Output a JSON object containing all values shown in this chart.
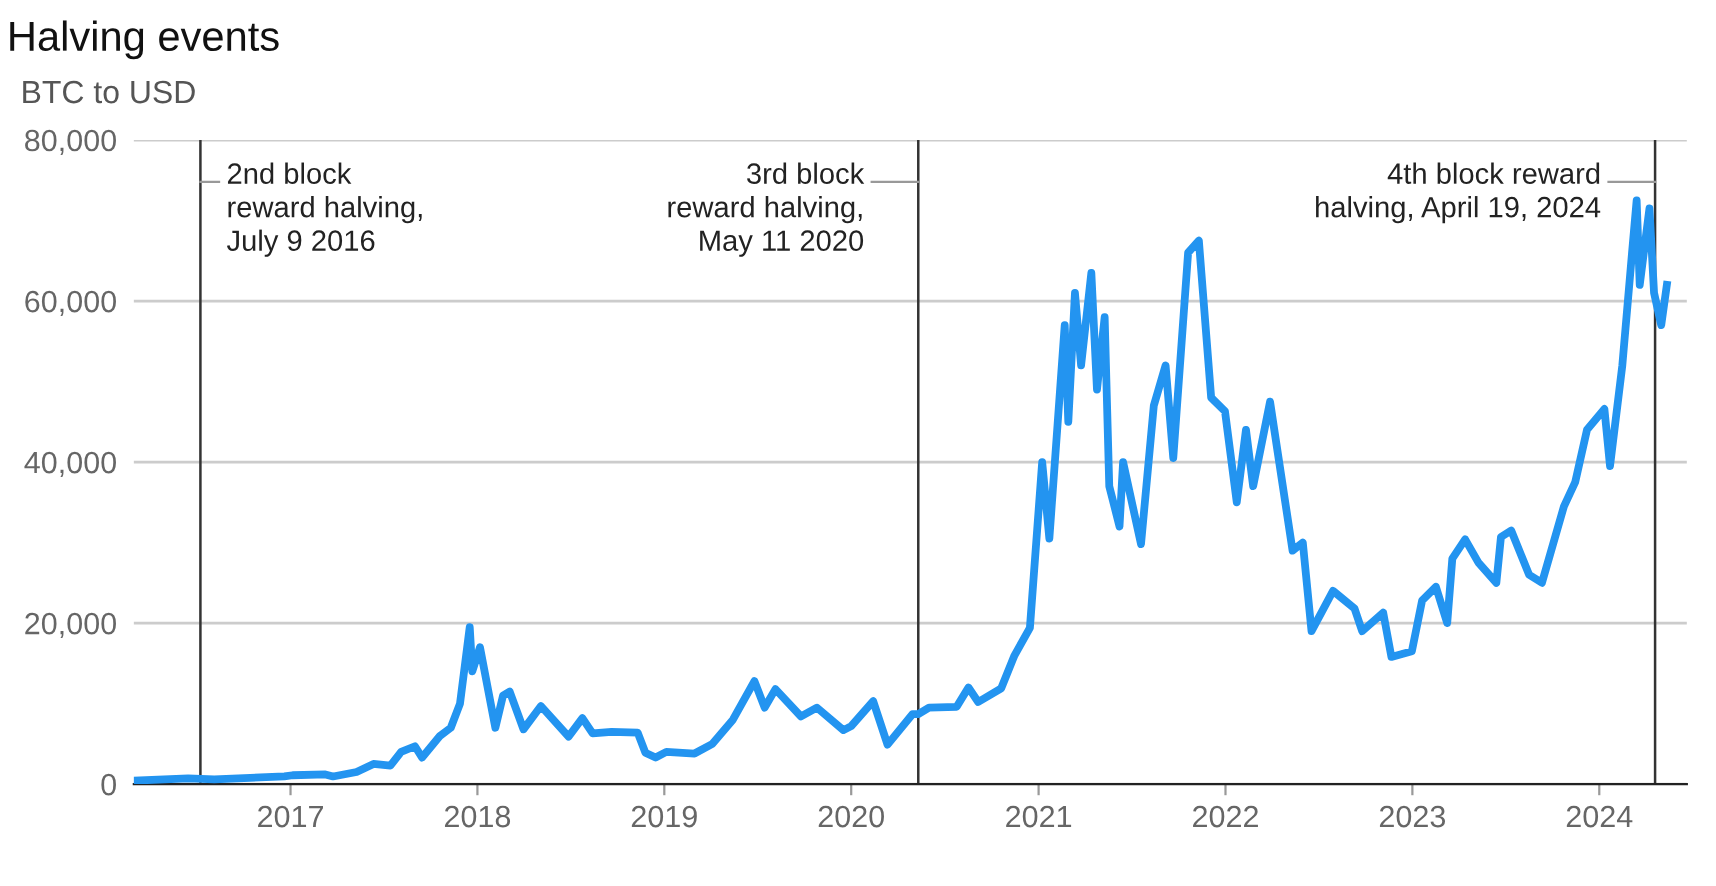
{
  "chart_data": {
    "type": "line",
    "title": "Halving events",
    "subtitle": "BTC to USD",
    "x": [
      "2016-03-01",
      "2016-06-15",
      "2016-08-05",
      "2016-12-20",
      "2017-01-05",
      "2017-03-10",
      "2017-03-25",
      "2017-05-10",
      "2017-06-12",
      "2017-07-15",
      "2017-08-05",
      "2017-09-01",
      "2017-09-15",
      "2017-10-20",
      "2017-11-10",
      "2017-11-28",
      "2017-12-17",
      "2017-12-22",
      "2018-01-06",
      "2018-02-05",
      "2018-02-20",
      "2018-03-05",
      "2018-04-01",
      "2018-05-05",
      "2018-06-28",
      "2018-07-25",
      "2018-08-14",
      "2018-09-20",
      "2018-11-10",
      "2018-11-25",
      "2018-12-15",
      "2019-01-05",
      "2019-03-01",
      "2019-04-05",
      "2019-05-15",
      "2019-06-26",
      "2019-07-16",
      "2019-08-06",
      "2019-09-25",
      "2019-10-26",
      "2019-12-17",
      "2020-01-01",
      "2020-02-13",
      "2020-03-12",
      "2020-04-30",
      "2020-05-11",
      "2020-06-01",
      "2020-07-25",
      "2020-08-17",
      "2020-09-05",
      "2020-10-20",
      "2020-11-15",
      "2020-12-15",
      "2021-01-08",
      "2021-01-22",
      "2021-02-21",
      "2021-02-28",
      "2021-03-13",
      "2021-03-25",
      "2021-04-14",
      "2021-04-25",
      "2021-05-10",
      "2021-05-19",
      "2021-06-08",
      "2021-06-15",
      "2021-07-20",
      "2021-08-14",
      "2021-09-06",
      "2021-09-21",
      "2021-10-20",
      "2021-11-10",
      "2021-12-04",
      "2021-12-31",
      "2022-01-23",
      "2022-02-10",
      "2022-02-24",
      "2022-03-29",
      "2022-05-12",
      "2022-06-01",
      "2022-06-18",
      "2022-07-30",
      "2022-09-10",
      "2022-09-25",
      "2022-11-05",
      "2022-11-21",
      "2022-12-31",
      "2023-01-20",
      "2023-02-16",
      "2023-03-10",
      "2023-03-20",
      "2023-04-14",
      "2023-05-10",
      "2023-06-14",
      "2023-06-23",
      "2023-07-13",
      "2023-08-17",
      "2023-09-11",
      "2023-10-24",
      "2023-11-15",
      "2023-12-08",
      "2024-01-11",
      "2024-01-22",
      "2024-02-15",
      "2024-03-05",
      "2024-03-14",
      "2024-03-20",
      "2024-04-08",
      "2024-04-17",
      "2024-05-01",
      "2024-05-12"
    ],
    "series": [
      {
        "color": "#2394f0",
        "values": [
          430,
          700,
          580,
          960,
          1100,
          1200,
          950,
          1500,
          2500,
          2300,
          4000,
          4700,
          3300,
          6000,
          7000,
          10000,
          19500,
          14000,
          17000,
          7000,
          11000,
          11500,
          6800,
          9700,
          5900,
          8200,
          6300,
          6500,
          6400,
          3900,
          3300,
          4000,
          3800,
          5000,
          8000,
          12800,
          9500,
          11800,
          8400,
          9500,
          6700,
          7200,
          10300,
          4900,
          8700,
          8700,
          9500,
          9600,
          12000,
          10200,
          11900,
          16000,
          19400,
          40000,
          30500,
          57000,
          45000,
          61000,
          52000,
          63500,
          49000,
          58000,
          37000,
          32000,
          40000,
          29800,
          47000,
          52000,
          40500,
          66000,
          67500,
          48000,
          46300,
          35000,
          44000,
          37000,
          47500,
          29000,
          30000,
          19000,
          24000,
          21800,
          19000,
          21300,
          15800,
          16500,
          22800,
          24500,
          20000,
          28000,
          30400,
          27500,
          25000,
          30700,
          31500,
          26000,
          25000,
          34500,
          37500,
          44000,
          46600,
          39500,
          52000,
          66000,
          72500,
          62000,
          71500,
          61000,
          57000,
          62000
        ]
      }
    ],
    "xlim": [
      "2016-03-01",
      "2024-06-20"
    ],
    "xticks": [
      {
        "value": "2017",
        "label": "2017"
      },
      {
        "value": "2018",
        "label": "2018"
      },
      {
        "value": "2019",
        "label": "2019"
      },
      {
        "value": "2020",
        "label": "2020"
      },
      {
        "value": "2021",
        "label": "2021"
      },
      {
        "value": "2022",
        "label": "2022"
      },
      {
        "value": "2023",
        "label": "2023"
      },
      {
        "value": "2024",
        "label": "2024"
      }
    ],
    "ylim": [
      0,
      80000
    ],
    "yticks": [
      0,
      {
        "value": 20000,
        "label": "20,000"
      },
      {
        "value": 40000,
        "label": "40,000"
      },
      {
        "value": 60000,
        "label": "60,000"
      },
      {
        "value": 80000,
        "label": "80,000"
      }
    ],
    "grid": "y",
    "marker": "none",
    "line_style": "solid",
    "ref_lines": [
      {
        "axis": "x",
        "value": "2016-07-09",
        "label": "2nd block\nreward halving,\nJuly 9 2016",
        "color": "#333333"
      },
      {
        "axis": "x",
        "value": "2020-05-11",
        "label": "3rd block\nreward halving,\nMay 11 2020",
        "color": "#333333"
      },
      {
        "axis": "x",
        "value": "2024-04-19",
        "label": "4th block reward\nhalving, April 19, 2024",
        "color": "#333333"
      }
    ]
  }
}
